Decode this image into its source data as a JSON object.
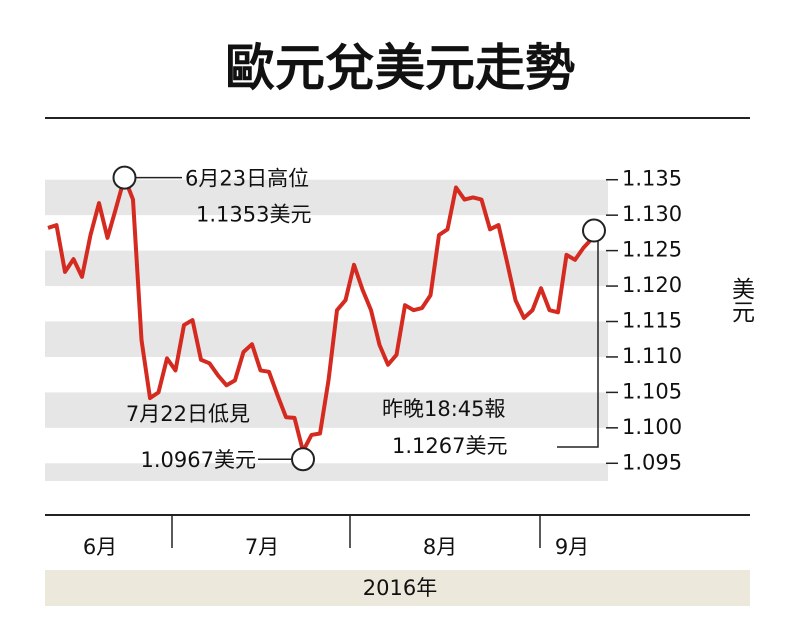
{
  "chart_data": {
    "type": "line",
    "title": "歐元兌美元走勢",
    "y_label": "美元",
    "x_labels": [
      "6月",
      "7月",
      "8月",
      "9月"
    ],
    "x_title": "2016年",
    "color": "#d42a20",
    "values": [
      1.1282,
      1.1286,
      1.122,
      1.1238,
      1.1213,
      1.1272,
      1.1317,
      1.1268,
      1.131,
      1.1353,
      1.1322,
      1.1124,
      1.1042,
      1.105,
      1.1098,
      1.1081,
      1.1145,
      1.1152,
      1.1096,
      1.1091,
      1.1074,
      1.106,
      1.1067,
      1.1107,
      1.1118,
      1.1081,
      1.1079,
      1.1046,
      1.1015,
      1.1014,
      1.0967,
      1.099,
      1.0992,
      1.1067,
      1.1166,
      1.118,
      1.123,
      1.1195,
      1.1166,
      1.1117,
      1.1089,
      1.1103,
      1.1173,
      1.1166,
      1.1169,
      1.1187,
      1.1272,
      1.128,
      1.1339,
      1.1322,
      1.1325,
      1.1322,
      1.128,
      1.1286,
      1.1234,
      1.118,
      1.1155,
      1.1166,
      1.1197,
      1.1166,
      1.1163,
      1.1244,
      1.1237,
      1.1254,
      1.1267
    ],
    "ylim": [
      1.0925,
      1.1375
    ],
    "yticks": [
      1.135,
      {
        "value": 1.13,
        "label": "1.130"
      },
      1.125,
      {
        "value": 1.12,
        "label": "1.120"
      },
      1.115,
      {
        "value": 1.11,
        "label": "1.110"
      },
      1.105,
      {
        "value": 1.1,
        "label": "1.100"
      },
      1.095
    ],
    "annotations": [
      [
        "6月23日高位",
        "1.1353美元"
      ],
      [
        "7月22日低見",
        "1.0967美元"
      ],
      [
        "昨晚18:45報",
        "1.1267美元"
      ]
    ]
  }
}
